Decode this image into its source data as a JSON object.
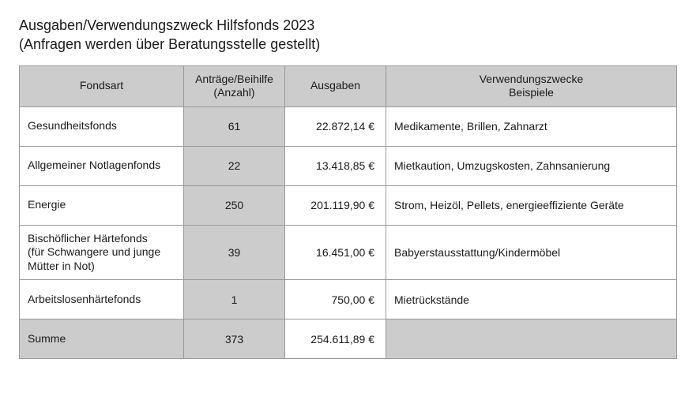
{
  "title_line1": "Ausgaben/Verwendungszweck Hilfsfonds 2023",
  "title_line2": "(Anfragen werden über Beratungsstelle gestellt)",
  "table": {
    "columns": [
      "Fondsart",
      "Anträge/Beihilfe\n(Anzahl)",
      "Ausgaben",
      "Verwendungszwecke\nBeispiele"
    ],
    "rows": [
      {
        "fund": "Gesundheitsfonds",
        "count": "61",
        "amount": "22.872,14 €",
        "examples": "Medikamente, Brillen, Zahnarzt"
      },
      {
        "fund": "Allgemeiner Notlagenfonds",
        "count": "22",
        "amount": "13.418,85 €",
        "examples": "Mietkaution, Umzugskosten, Zahnsanierung"
      },
      {
        "fund": "Energie",
        "count": "250",
        "amount": "201.119,90 €",
        "examples": "Strom, Heizöl, Pellets, energieeffiziente Geräte"
      },
      {
        "fund": "Bischöflicher Härtefonds\n(für Schwangere und junge\nMütter in Not)",
        "count": "39",
        "amount": "16.451,00 €",
        "examples": "Babyerstausstattung/Kindermöbel"
      },
      {
        "fund": "Arbeitslosenhärtefonds",
        "count": "1",
        "amount": "750,00 €",
        "examples": "Mietrückstände"
      }
    ],
    "sum": {
      "fund": "Summe",
      "count": "373",
      "amount": "254.611,89 €",
      "examples": ""
    },
    "header_bg": "#cccccc",
    "border_color": "#999999",
    "background": "#ffffff",
    "text_color": "#1a1a1a",
    "title_fontsize": 18,
    "cell_fontsize": 14
  }
}
